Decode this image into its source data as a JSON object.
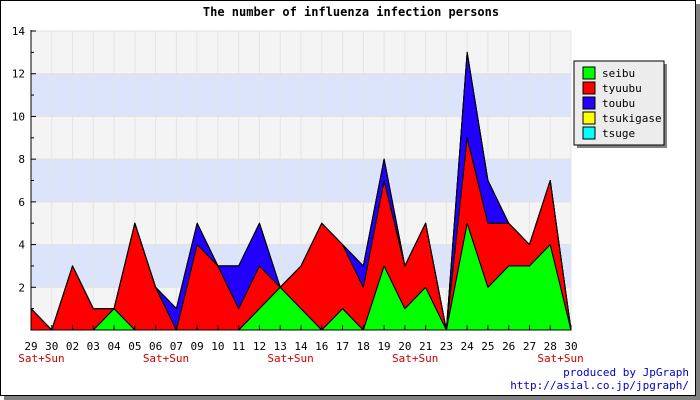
{
  "chart_data": {
    "type": "area",
    "stacked": true,
    "title": "The number of influenza infection persons",
    "xlabel": "",
    "ylabel": "",
    "ylim": [
      0,
      14
    ],
    "y_ticks": [
      2,
      4,
      6,
      8,
      10,
      12,
      14
    ],
    "grid": true,
    "band_colors": [
      "#f4f4f4",
      "#dbe4fa"
    ],
    "legend_position": "top-right",
    "categories": [
      "29",
      "30",
      "02",
      "03",
      "04",
      "05",
      "06",
      "07",
      "09",
      "10",
      "11",
      "12",
      "13",
      "14",
      "16",
      "17",
      "18",
      "19",
      "20",
      "21",
      "23",
      "24",
      "25",
      "26",
      "27",
      "28",
      "30"
    ],
    "weekend_label": "Sat+Sun",
    "weekend_category_indexes": [
      0,
      6,
      12,
      18,
      25
    ],
    "series": [
      {
        "name": "seibu",
        "color": "#00ff00",
        "values": [
          0,
          0,
          0,
          0,
          1,
          0,
          0,
          0,
          0,
          0,
          0,
          1,
          2,
          1,
          0,
          1,
          0,
          3,
          1,
          2,
          0,
          5,
          2,
          3,
          3,
          4,
          0
        ]
      },
      {
        "name": "tyuubu",
        "color": "#ff0000",
        "values": [
          1,
          0,
          3,
          1,
          0,
          5,
          2,
          0,
          4,
          3,
          1,
          2,
          0,
          2,
          5,
          3,
          2,
          4,
          2,
          3,
          0,
          4,
          3,
          2,
          1,
          3,
          0
        ]
      },
      {
        "name": "toubu",
        "color": "#2200ff",
        "values": [
          0,
          0,
          0,
          0,
          0,
          0,
          0,
          1,
          1,
          0,
          2,
          2,
          0,
          0,
          0,
          0,
          1,
          1,
          0,
          0,
          0,
          4,
          2,
          0,
          0,
          0,
          0
        ]
      },
      {
        "name": "tsukigase",
        "color": "#ffff00",
        "values": [
          0,
          0,
          0,
          0,
          0,
          0,
          0,
          0,
          0,
          0,
          0,
          0,
          0,
          0,
          0,
          0,
          0,
          0,
          0,
          0,
          0,
          0,
          0,
          0,
          0,
          0,
          0
        ]
      },
      {
        "name": "tsuge",
        "color": "#00ffff",
        "values": [
          0,
          0,
          0,
          0,
          0,
          0,
          0,
          0,
          0,
          0,
          0,
          0,
          0,
          0,
          0,
          0,
          0,
          0,
          0,
          0,
          0,
          0,
          0,
          0,
          0,
          0,
          0
        ]
      }
    ],
    "credit_line1": "produced by JpGraph",
    "credit_line2": "http://asial.co.jp/jpgraph/"
  }
}
